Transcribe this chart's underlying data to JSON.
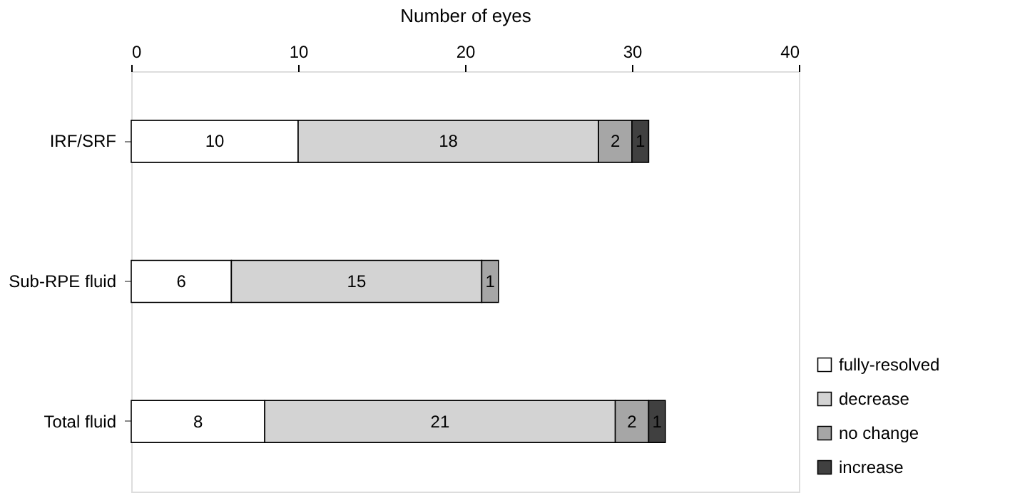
{
  "chart_data": {
    "type": "bar",
    "orientation": "horizontal",
    "stacked": true,
    "xlabel": "Number of eyes",
    "categories": [
      "IRF/SRF",
      "Sub-RPE fluid",
      "Total fluid"
    ],
    "series": [
      {
        "name": "fully-resolved",
        "color": "#ffffff",
        "values": [
          10,
          6,
          8
        ]
      },
      {
        "name": "decrease",
        "color": "#d3d3d3",
        "values": [
          18,
          15,
          21
        ]
      },
      {
        "name": "no change",
        "color": "#a6a6a6",
        "values": [
          2,
          1,
          2
        ]
      },
      {
        "name": "increase",
        "color": "#404040",
        "values": [
          1,
          null,
          1
        ]
      }
    ],
    "xlim": [
      0,
      40
    ],
    "xticks": [
      0,
      10,
      20,
      30,
      40
    ],
    "data_labels": true,
    "grid": false,
    "legend": "bottom right"
  }
}
